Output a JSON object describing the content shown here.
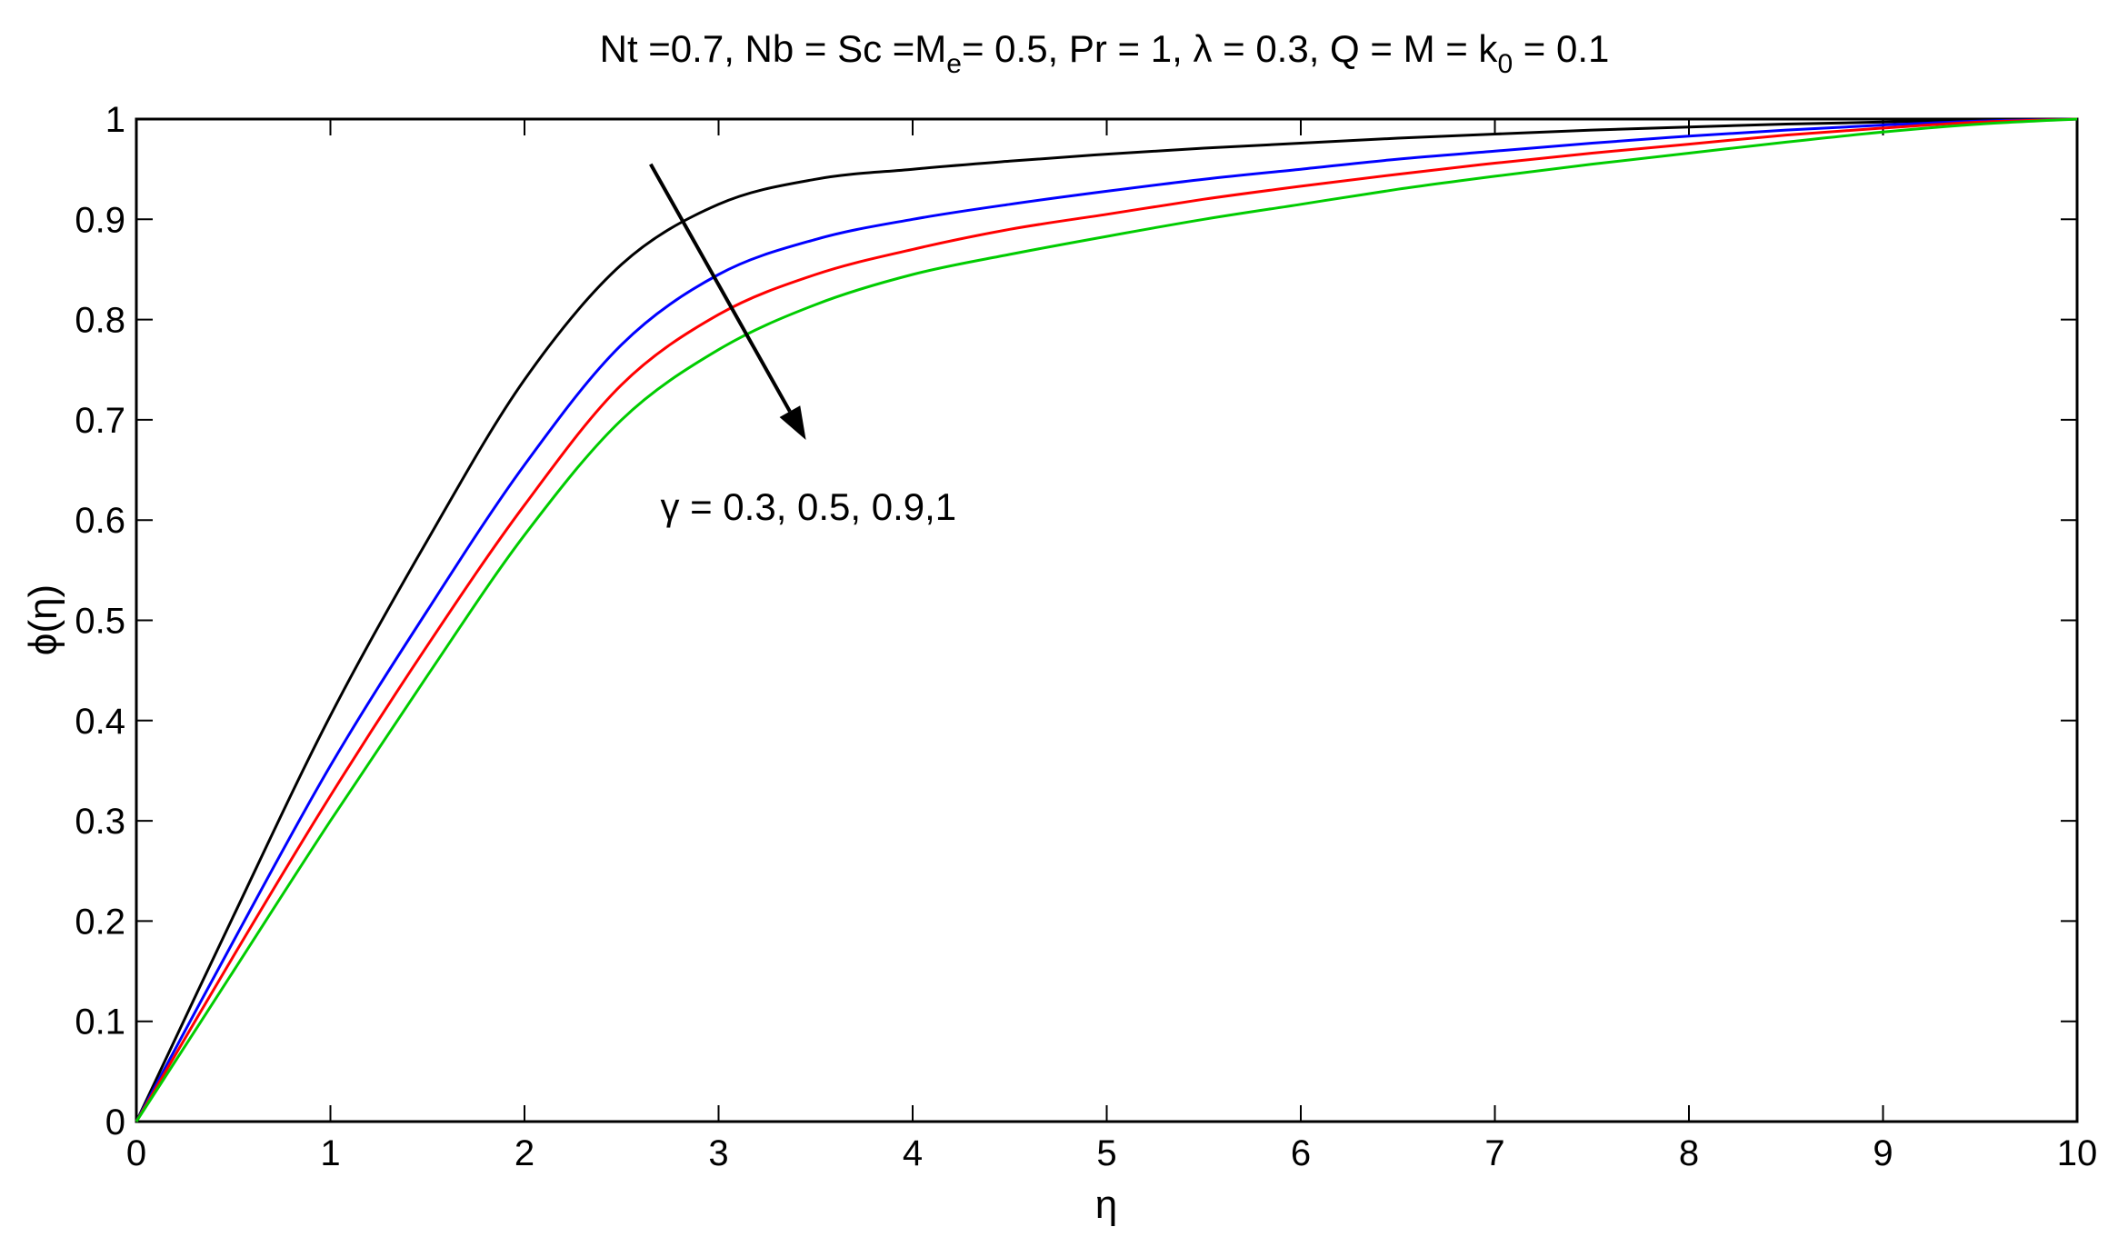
{
  "chart_data": {
    "type": "line",
    "title": "Nt =0.7, Nb = Sc =Me= 0.5, Pr = 1, λ = 0.3, Q = M = k0 = 0.1",
    "title_parts": {
      "p1": "Nt =0.7, Nb = Sc =M",
      "sub1": "e",
      "p2": "= 0.5, Pr = 1, λ = 0.3, Q = M = k",
      "sub2": "0",
      "p3": " = 0.1"
    },
    "xlabel": "η",
    "ylabel": "ϕ(η)",
    "xlim": [
      0,
      10
    ],
    "ylim": [
      0,
      1
    ],
    "x_ticks": [
      "0",
      "1",
      "2",
      "3",
      "4",
      "5",
      "6",
      "7",
      "8",
      "9",
      "10"
    ],
    "y_ticks": [
      "0",
      "0.1",
      "0.2",
      "0.3",
      "0.4",
      "0.5",
      "0.6",
      "0.7",
      "0.8",
      "0.9",
      "1"
    ],
    "grid": false,
    "colors": {
      "axes": "#000000",
      "background": "#ffffff"
    },
    "annotation": {
      "text": "γ = 0.3, 0.5, 0.9,1",
      "arrow_from": [
        2.65,
        0.955
      ],
      "arrow_to": [
        3.45,
        0.68
      ],
      "text_at": [
        2.7,
        0.6
      ]
    },
    "x": [
      0,
      0.5,
      1,
      1.5,
      2,
      2.5,
      3,
      3.5,
      4,
      4.5,
      5,
      5.5,
      6,
      6.5,
      7,
      7.5,
      8,
      8.5,
      9,
      9.5,
      10
    ],
    "series": [
      {
        "color": "#000000",
        "values": [
          0,
          0.205,
          0.405,
          0.58,
          0.74,
          0.855,
          0.915,
          0.94,
          0.95,
          0.958,
          0.965,
          0.971,
          0.976,
          0.981,
          0.985,
          0.989,
          0.992,
          0.995,
          0.997,
          0.999,
          1
        ]
      },
      {
        "color": "#0000ff",
        "values": [
          0,
          0.18,
          0.355,
          0.51,
          0.655,
          0.775,
          0.845,
          0.88,
          0.9,
          0.915,
          0.928,
          0.94,
          0.95,
          0.96,
          0.968,
          0.976,
          0.983,
          0.989,
          0.994,
          0.998,
          1
        ]
      },
      {
        "color": "#ff0000",
        "values": [
          0,
          0.165,
          0.325,
          0.475,
          0.615,
          0.735,
          0.805,
          0.845,
          0.87,
          0.89,
          0.905,
          0.92,
          0.933,
          0.945,
          0.956,
          0.966,
          0.975,
          0.984,
          0.991,
          0.997,
          1
        ]
      },
      {
        "color": "#00cc00",
        "values": [
          0,
          0.15,
          0.3,
          0.445,
          0.585,
          0.7,
          0.77,
          0.815,
          0.845,
          0.865,
          0.883,
          0.9,
          0.915,
          0.93,
          0.943,
          0.955,
          0.966,
          0.977,
          0.987,
          0.995,
          1
        ]
      }
    ]
  }
}
